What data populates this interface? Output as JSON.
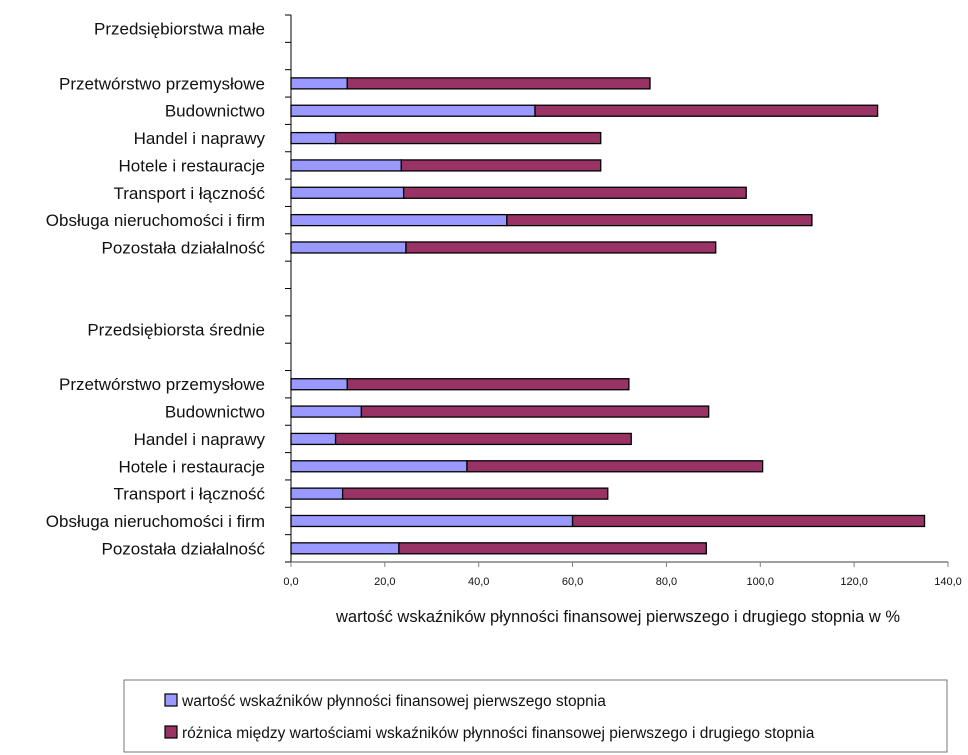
{
  "chart_data": {
    "type": "bar",
    "orientation": "horizontal",
    "stacked": true,
    "xlabel": "wartość wskaźników płynności finansowej pierwszego i drugiego stopnia w %",
    "ylabel": "",
    "xlim": [
      0,
      140
    ],
    "x_ticks": [
      "0,0",
      "20,0",
      "40,0",
      "60,0",
      "80,0",
      "100,0",
      "120,0",
      "140,0"
    ],
    "grid": false,
    "legend_position": "bottom",
    "categories": [
      "Przedsiębiorstwa małe",
      "",
      "Przetwórstwo przemysłowe",
      "Budownictwo",
      "Handel i naprawy",
      "Hotele i restauracje",
      "Transport i łączność",
      "Obsługa nieruchomości i firm",
      "Pozostała działalność",
      "",
      "",
      "Przedsiębiorsta średnie",
      "",
      "Przetwórstwo przemysłowe",
      "Budownictwo",
      "Handel i naprawy",
      "Hotele i restauracje",
      "Transport i łączność",
      "Obsługa nieruchomości i firm",
      "Pozostała działalność"
    ],
    "series": [
      {
        "name": "wartość wskaźników płynności finansowej pierwszego stopnia",
        "color": "#9999ff",
        "values": [
          null,
          null,
          12.0,
          52.0,
          9.5,
          23.5,
          24.0,
          46.0,
          24.5,
          null,
          null,
          null,
          null,
          12.0,
          15.0,
          9.5,
          37.5,
          11.0,
          60.0,
          23.0
        ]
      },
      {
        "name": "różnica między wartościami  wskaźników płynności finansowej pierwszego i drugiego stopnia",
        "color": "#993366",
        "values": [
          null,
          null,
          64.5,
          73.0,
          56.5,
          42.5,
          73.0,
          65.0,
          66.0,
          null,
          null,
          null,
          null,
          60.0,
          74.0,
          63.0,
          63.0,
          56.5,
          75.0,
          65.5
        ]
      }
    ]
  }
}
